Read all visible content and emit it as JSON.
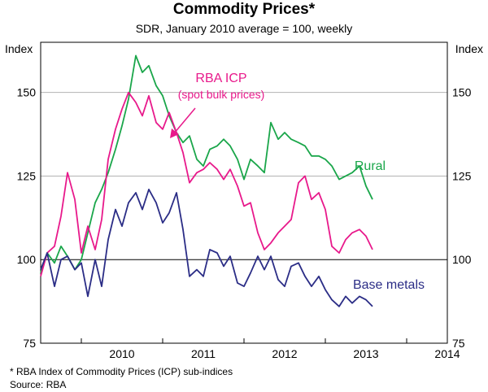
{
  "chart_data": {
    "type": "line",
    "title": "Commodity Prices*",
    "subtitle": "SDR, January 2010 average = 100, weekly",
    "ylabel_left": "Index",
    "ylabel_right": "Index",
    "ylim": [
      75,
      165
    ],
    "xlim": [
      2009.5,
      2014.5
    ],
    "yticks": [
      75,
      100,
      125,
      150
    ],
    "ytick_labels": [
      "75",
      "100",
      "125",
      "150"
    ],
    "xticks": [
      2010,
      2011,
      2012,
      2013,
      2014
    ],
    "xtick_labels": [
      "2010",
      "2011",
      "2012",
      "2013",
      "2014"
    ],
    "reference_line": 100,
    "series": [
      {
        "name": "Rural",
        "color": "#1aa64a",
        "x": [
          2009.5,
          2009.58,
          2009.67,
          2009.75,
          2009.83,
          2009.92,
          2010.0,
          2010.08,
          2010.17,
          2010.25,
          2010.33,
          2010.42,
          2010.5,
          2010.58,
          2010.67,
          2010.75,
          2010.83,
          2010.92,
          2011.0,
          2011.08,
          2011.17,
          2011.25,
          2011.33,
          2011.42,
          2011.5,
          2011.58,
          2011.67,
          2011.75,
          2011.83,
          2011.92,
          2012.0,
          2012.08,
          2012.17,
          2012.25,
          2012.33,
          2012.42,
          2012.5,
          2012.58,
          2012.67,
          2012.75,
          2012.83,
          2012.92,
          2013.0,
          2013.08,
          2013.17,
          2013.25,
          2013.33,
          2013.42,
          2013.5,
          2013.58
        ],
        "values": [
          96,
          102,
          99,
          104,
          101,
          97,
          100,
          108,
          117,
          121,
          126,
          133,
          140,
          148,
          161,
          156,
          158,
          152,
          149,
          143,
          138,
          135,
          137,
          130,
          128,
          133,
          134,
          136,
          134,
          130,
          124,
          130,
          128,
          126,
          141,
          136,
          138,
          136,
          135,
          134,
          131,
          131,
          130,
          128,
          124,
          125,
          126,
          128,
          122,
          118
        ]
      },
      {
        "name": "RBA ICP",
        "color": "#e8198b",
        "x": [
          2009.5,
          2009.58,
          2009.67,
          2009.75,
          2009.83,
          2009.92,
          2010.0,
          2010.08,
          2010.17,
          2010.25,
          2010.33,
          2010.42,
          2010.5,
          2010.58,
          2010.67,
          2010.75,
          2010.83,
          2010.92,
          2011.0,
          2011.08,
          2011.17,
          2011.25,
          2011.33,
          2011.42,
          2011.5,
          2011.58,
          2011.67,
          2011.75,
          2011.83,
          2011.92,
          2012.0,
          2012.08,
          2012.17,
          2012.25,
          2012.33,
          2012.42,
          2012.5,
          2012.58,
          2012.67,
          2012.75,
          2012.83,
          2012.92,
          2013.0,
          2013.08,
          2013.17,
          2013.25,
          2013.33,
          2013.42,
          2013.5,
          2013.58
        ],
        "values": [
          95,
          102,
          104,
          113,
          126,
          118,
          102,
          110,
          103,
          112,
          130,
          139,
          145,
          150,
          147,
          143,
          149,
          141,
          139,
          144,
          138,
          132,
          123,
          126,
          127,
          129,
          127,
          124,
          127,
          122,
          116,
          117,
          108,
          103,
          105,
          108,
          110,
          112,
          123,
          125,
          118,
          120,
          115,
          104,
          102,
          106,
          108,
          109,
          107,
          103
        ]
      },
      {
        "name": "Base metals",
        "color": "#2b2d86",
        "x": [
          2009.5,
          2009.58,
          2009.67,
          2009.75,
          2009.83,
          2009.92,
          2010.0,
          2010.08,
          2010.17,
          2010.25,
          2010.33,
          2010.42,
          2010.5,
          2010.58,
          2010.67,
          2010.75,
          2010.83,
          2010.92,
          2011.0,
          2011.08,
          2011.17,
          2011.25,
          2011.33,
          2011.42,
          2011.5,
          2011.58,
          2011.67,
          2011.75,
          2011.83,
          2011.92,
          2012.0,
          2012.08,
          2012.17,
          2012.25,
          2012.33,
          2012.42,
          2012.5,
          2012.58,
          2012.67,
          2012.75,
          2012.83,
          2012.92,
          2013.0,
          2013.08,
          2013.17,
          2013.25,
          2013.33,
          2013.42,
          2013.5,
          2013.58
        ],
        "values": [
          97,
          102,
          92,
          100,
          101,
          97,
          99,
          89,
          100,
          92,
          106,
          115,
          110,
          117,
          120,
          115,
          121,
          117,
          111,
          114,
          120,
          109,
          95,
          97,
          95,
          103,
          102,
          98,
          101,
          93,
          92,
          96,
          101,
          97,
          101,
          94,
          92,
          98,
          99,
          95,
          92,
          95,
          91,
          88,
          86,
          89,
          87,
          89,
          88,
          86
        ]
      }
    ],
    "annotations": [
      {
        "text": "RBA ICP",
        "series": "RBA ICP"
      },
      {
        "text": "(spot bulk prices)",
        "series": "RBA ICP"
      },
      {
        "text": "Rural",
        "series": "Rural"
      },
      {
        "text": "Base metals",
        "series": "Base metals"
      }
    ],
    "footnote": "*    RBA Index of Commodity Prices (ICP) sub-indices",
    "source": "Source: RBA"
  }
}
